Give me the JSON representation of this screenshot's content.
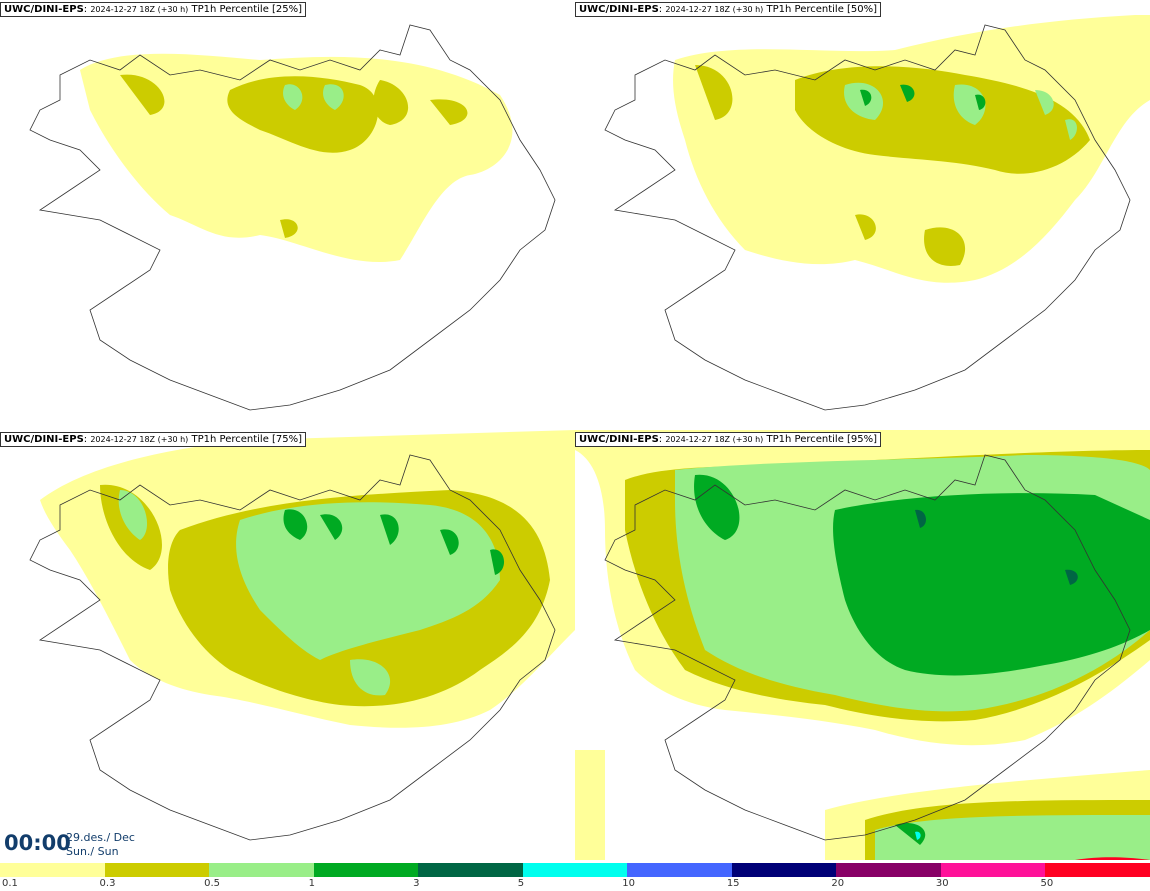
{
  "panels": [
    {
      "model": "UWC/DINI-EPS",
      "run": "2024-12-27 18Z (+30 h)",
      "field": "TP1h Percentile [25%]"
    },
    {
      "model": "UWC/DINI-EPS",
      "run": "2024-12-27 18Z (+30 h)",
      "field": "TP1h Percentile [50%]"
    },
    {
      "model": "UWC/DINI-EPS",
      "run": "2024-12-27 18Z (+30 h)",
      "field": "TP1h Percentile [75%]"
    },
    {
      "model": "UWC/DINI-EPS",
      "run": "2024-12-27 18Z (+30 h)",
      "field": "TP1h Percentile [95%]"
    }
  ],
  "valid_time": {
    "clock": "00:00",
    "date": "29.des./ Dec",
    "weekday": "Sun./ Sun"
  },
  "legend": {
    "colors": [
      "#ffff99",
      "#cccc00",
      "#99ee88",
      "#00aa22",
      "#006644",
      "#00ffee",
      "#4466ff",
      "#000077",
      "#880066",
      "#ff1199",
      "#ff0022"
    ],
    "ticks": [
      "0.1",
      "0.3",
      "0.5",
      "1",
      "3",
      "5",
      "10",
      "15",
      "20",
      "30",
      "50"
    ]
  }
}
